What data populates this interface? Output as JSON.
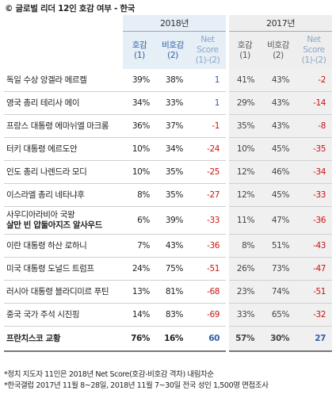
{
  "title": "© 글로벌 리더 12인 호감 여부 - 한국",
  "years": {
    "y2018": "2018년",
    "y2017": "2017년"
  },
  "columns": {
    "fav": [
      "호감",
      "(1)"
    ],
    "unfav": [
      "비호감",
      "(2)"
    ],
    "net": [
      "Net",
      "Score",
      "(1)-(2)"
    ]
  },
  "rows": [
    {
      "name": [
        "독일 수상 앙겔라 메르켈"
      ],
      "f18": "39%",
      "u18": "38%",
      "n18": "1",
      "f17": "41%",
      "u17": "43%",
      "n17": "-2"
    },
    {
      "name": [
        "영국 총리 테리사 메이"
      ],
      "f18": "34%",
      "u18": "33%",
      "n18": "1",
      "f17": "29%",
      "u17": "43%",
      "n17": "-14"
    },
    {
      "name": [
        "프랑스 대통령 에마뉘엘 마크롱"
      ],
      "f18": "36%",
      "u18": "37%",
      "n18": "-1",
      "f17": "35%",
      "u17": "43%",
      "n17": "-8"
    },
    {
      "name": [
        "터키 대통령 에르도안"
      ],
      "f18": "10%",
      "u18": "34%",
      "n18": "-24",
      "f17": "10%",
      "u17": "45%",
      "n17": "-35"
    },
    {
      "name": [
        "인도 총리 나렌드라 모디"
      ],
      "f18": "10%",
      "u18": "35%",
      "n18": "-25",
      "f17": "12%",
      "u17": "46%",
      "n17": "-34"
    },
    {
      "name": [
        "이스라엘 총리 네타냐후"
      ],
      "f18": "8%",
      "u18": "35%",
      "n18": "-27",
      "f17": "12%",
      "u17": "45%",
      "n17": "-33"
    },
    {
      "name": [
        "사우디아라비아 국왕",
        "살만 빈 압둘아지즈 알사우드"
      ],
      "f18": "6%",
      "u18": "39%",
      "n18": "-33",
      "f17": "11%",
      "u17": "47%",
      "n17": "-36"
    },
    {
      "name": [
        "이란 대통령 하산 로하니"
      ],
      "f18": "7%",
      "u18": "43%",
      "n18": "-36",
      "f17": "8%",
      "u17": "51%",
      "n17": "-43"
    },
    {
      "name": [
        "미국 대통령 도널드 트럼프"
      ],
      "f18": "24%",
      "u18": "75%",
      "n18": "-51",
      "f17": "26%",
      "u17": "73%",
      "n17": "-47"
    },
    {
      "name": [
        "러시아 대통령 블라디미르 푸틴"
      ],
      "f18": "13%",
      "u18": "81%",
      "n18": "-68",
      "f17": "23%",
      "u17": "74%",
      "n17": "-51"
    },
    {
      "name": [
        "중국 국가 주석 시진핑"
      ],
      "f18": "14%",
      "u18": "83%",
      "n18": "-69",
      "f17": "33%",
      "u17": "65%",
      "n17": "-32"
    },
    {
      "name": [
        "프란치스코 교황"
      ],
      "f18": "76%",
      "u18": "16%",
      "n18": "60",
      "f17": "57%",
      "u17": "30%",
      "n17": "27"
    }
  ],
  "notes": [
    "*정치 지도자 11인은 2018년 Net Score(호감-비호감 격차) 내림차순",
    "*한국갤럽 2017년 11월 8~28일, 2018년 11월 7~30일 전국 성인 1,500명 면접조사"
  ],
  "colors": {
    "negative": "#cc1111",
    "positive": "#3060a8",
    "header2018": "#e6eef6",
    "header2017": "#eeeeee"
  }
}
